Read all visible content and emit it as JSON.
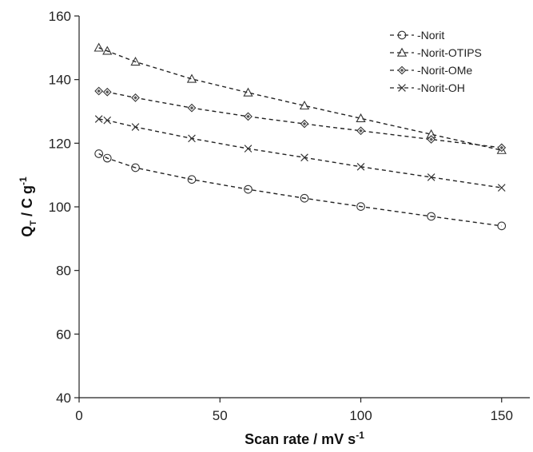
{
  "chart_data": {
    "type": "line",
    "title": "",
    "xlabel": "Scan rate / mV s",
    "xlabel_sup": "-1",
    "ylabel_main": "Q",
    "ylabel_sub": "T",
    "ylabel_rest": " / C g",
    "ylabel_sup": "-1",
    "xlim": [
      0,
      160
    ],
    "ylim": [
      40,
      160
    ],
    "xticks": [
      0,
      50,
      100,
      150
    ],
    "yticks": [
      40,
      60,
      80,
      100,
      120,
      140,
      160
    ],
    "grid": false,
    "legend_position": "top-right",
    "x": [
      7,
      10,
      20,
      40,
      60,
      80,
      100,
      125,
      150
    ],
    "series": [
      {
        "name": "Norit",
        "marker": "circle",
        "values": [
          116.7,
          115.3,
          112.3,
          108.6,
          105.5,
          102.7,
          100.1,
          97.0,
          94.0
        ]
      },
      {
        "name": "Norit-OTIPS",
        "marker": "triangle",
        "values": [
          150.0,
          149.0,
          145.6,
          140.2,
          135.9,
          131.8,
          127.8,
          122.8,
          117.8
        ]
      },
      {
        "name": "Norit-OMe",
        "marker": "diamond",
        "values": [
          136.4,
          136.1,
          134.3,
          131.1,
          128.4,
          126.1,
          123.9,
          121.2,
          118.6
        ]
      },
      {
        "name": "Norit-OH",
        "marker": "cross",
        "values": [
          127.6,
          127.2,
          125.1,
          121.5,
          118.3,
          115.5,
          112.6,
          109.3,
          106.0
        ]
      }
    ]
  }
}
